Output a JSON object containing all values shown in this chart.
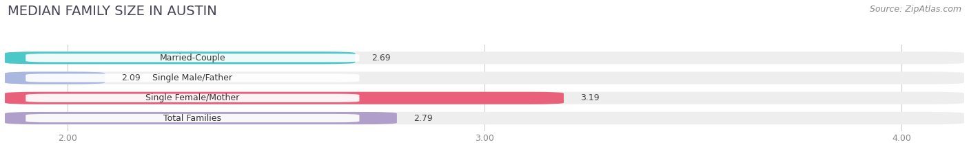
{
  "title": "MEDIAN FAMILY SIZE IN AUSTIN",
  "source": "Source: ZipAtlas.com",
  "categories": [
    "Married-Couple",
    "Single Male/Father",
    "Single Female/Mother",
    "Total Families"
  ],
  "values": [
    2.69,
    2.09,
    3.19,
    2.79
  ],
  "bar_colors": [
    "#4dc8c8",
    "#aab8e0",
    "#e8607a",
    "#b09fca"
  ],
  "xlim_start": 1.85,
  "xlim_end": 4.15,
  "xticks": [
    2.0,
    3.0,
    4.0
  ],
  "xtick_labels": [
    "2.00",
    "3.00",
    "4.00"
  ],
  "bar_height": 0.62,
  "background_color": "#ffffff",
  "bar_background_color": "#eeeeee",
  "label_bg_color": "#ffffff",
  "title_fontsize": 14,
  "source_fontsize": 9,
  "label_fontsize": 9,
  "value_fontsize": 9,
  "title_color": "#444455",
  "label_color": "#333333",
  "value_color": "#444444",
  "source_color": "#888888",
  "grid_color": "#cccccc",
  "tick_color": "#888888"
}
